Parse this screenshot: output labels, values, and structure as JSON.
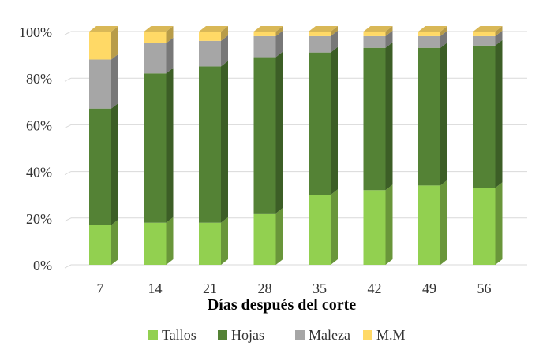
{
  "chart_data": {
    "type": "bar",
    "stacked": true,
    "percent": true,
    "style": "3d-stacked-column",
    "title": "",
    "xlabel": "Días después del corte",
    "ylabel": "",
    "ylim": [
      0,
      100
    ],
    "yticks": [
      "0%",
      "20%",
      "40%",
      "60%",
      "80%",
      "100%"
    ],
    "categories": [
      "7",
      "14",
      "21",
      "28",
      "35",
      "42",
      "49",
      "56"
    ],
    "series": [
      {
        "name": "Tallos",
        "color": "#92d050",
        "values": [
          17,
          18,
          18,
          22,
          30,
          32,
          34,
          33
        ]
      },
      {
        "name": "Hojas",
        "color": "#548235",
        "values": [
          50,
          64,
          67,
          67,
          61,
          61,
          59,
          61
        ]
      },
      {
        "name": "Maleza",
        "color": "#a6a6a6",
        "values": [
          21,
          13,
          11,
          9,
          7,
          5,
          5,
          4
        ]
      },
      {
        "name": "M.M",
        "color": "#ffd966",
        "values": [
          12,
          5,
          4,
          2,
          2,
          2,
          2,
          2
        ]
      }
    ],
    "grid": true,
    "legend_position": "bottom"
  }
}
